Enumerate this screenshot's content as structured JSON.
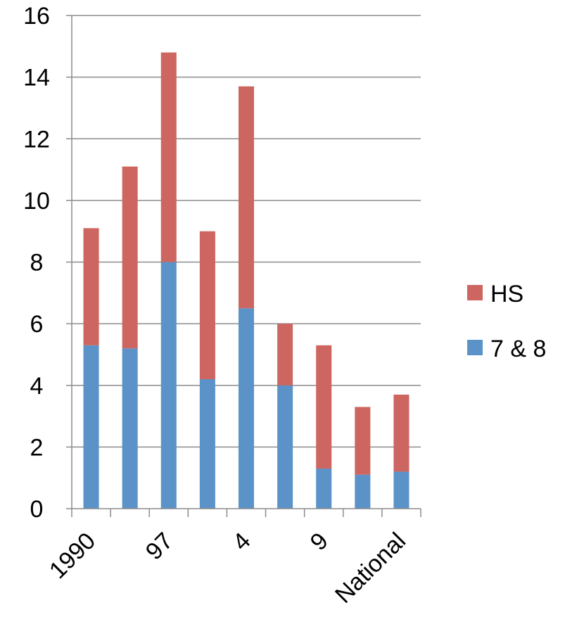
{
  "chart_data": {
    "type": "bar",
    "stacked": true,
    "categories": [
      "1990",
      "",
      "97",
      "",
      "4",
      "",
      "9",
      "",
      "National"
    ],
    "series": [
      {
        "name": "7 & 8",
        "color": "#5b93c8",
        "values": [
          5.3,
          5.2,
          8.0,
          4.2,
          6.5,
          4.0,
          1.3,
          1.1,
          1.2
        ]
      },
      {
        "name": "HS",
        "color": "#cd6660",
        "values": [
          3.8,
          5.9,
          6.8,
          4.8,
          7.2,
          2.0,
          4.0,
          2.2,
          2.5
        ]
      }
    ],
    "ylim": [
      0,
      16
    ],
    "yticks": [
      "0",
      "2",
      "4",
      "6",
      "8",
      "10",
      "12",
      "14",
      "16"
    ],
    "grid": true,
    "legend": {
      "placement": "right",
      "order": [
        "HS",
        "7 & 8"
      ]
    },
    "gridColor": "#8c8c8c"
  }
}
